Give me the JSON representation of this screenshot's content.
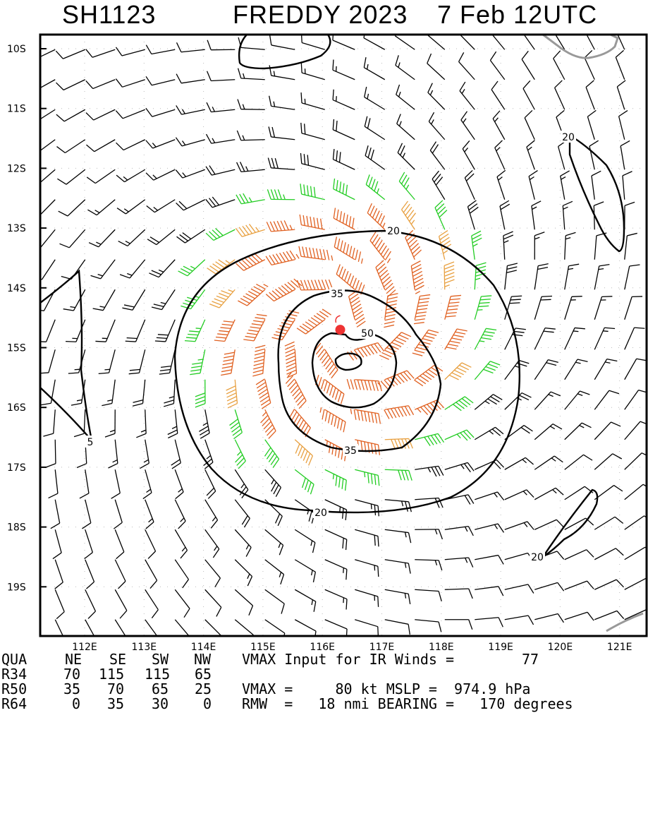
{
  "title": {
    "storm_id": "SH1123",
    "storm_name_year": "FREDDY 2023",
    "valid_time": "7 Feb 12UTC"
  },
  "axes": {
    "lat_labels": [
      "10S",
      "11S",
      "12S",
      "13S",
      "14S",
      "15S",
      "16S",
      "17S",
      "18S",
      "19S"
    ],
    "lon_labels": [
      "112E",
      "113E",
      "114E",
      "115E",
      "116E",
      "117E",
      "118E",
      "119E",
      "120E",
      "121E"
    ]
  },
  "map_data": {
    "center": {
      "lat": -14.7,
      "lon": 116.3
    },
    "contour_labels": [
      "20",
      "35",
      "50",
      "35",
      "20",
      "20",
      "20",
      "5"
    ],
    "colors": {
      "barb_weak": "#000000",
      "barb_34kt": "#22cc22",
      "barb_50kt": "#e8a040",
      "barb_64kt": "#e06020",
      "center_dot": "#ee3333",
      "coastline": "#999999"
    }
  },
  "table": {
    "header": {
      "label": "QUA",
      "cols": [
        "NE",
        "SE",
        "SW",
        "NW"
      ],
      "text": "VMAX Input for IR Winds =",
      "value": "77"
    },
    "rows": [
      {
        "label": "R34",
        "cols": [
          "70",
          "115",
          "115",
          "65"
        ],
        "text": ""
      },
      {
        "label": "R50",
        "cols": [
          "35",
          "70",
          "65",
          "25"
        ],
        "text": "VMAX =     80 kt MSLP =  974.9 hPa"
      },
      {
        "label": "R64",
        "cols": [
          "0",
          "35",
          "30",
          "0"
        ],
        "text": "RMW  =   18 nmi BEARING =   170 degrees"
      }
    ]
  }
}
